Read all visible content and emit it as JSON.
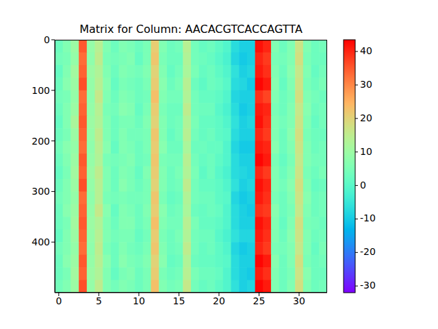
{
  "chart_data": {
    "type": "heatmap",
    "title": "Matrix for Column: AACACGTCACCAGTTA",
    "x": [
      0,
      1,
      2,
      3,
      4,
      5,
      6,
      7,
      8,
      9,
      10,
      11,
      12,
      13,
      14,
      15,
      16,
      17,
      18,
      19,
      20,
      21,
      22,
      23,
      24,
      25,
      26,
      27,
      28,
      29,
      30,
      31,
      32,
      33
    ],
    "row_edges": [
      0,
      25,
      50,
      75,
      100,
      125,
      150,
      175,
      200,
      225,
      250,
      275,
      300,
      325,
      350,
      375,
      400,
      425,
      450,
      475,
      500
    ],
    "xlim": [
      -0.5,
      33.5
    ],
    "xticks": [
      0,
      5,
      10,
      15,
      20,
      25,
      30
    ],
    "ylim": [
      500,
      0
    ],
    "yticks": [
      0,
      100,
      200,
      300,
      400
    ],
    "cells": [
      [
        3,
        6,
        10,
        35,
        9,
        14,
        6,
        3,
        6,
        5,
        3,
        5,
        21,
        6,
        3,
        4,
        14,
        4,
        2,
        3,
        1,
        -1,
        -7,
        -9,
        -9,
        42,
        40,
        6,
        3,
        6,
        17,
        6,
        3,
        4
      ],
      [
        4,
        5,
        9,
        33,
        8,
        15,
        5,
        4,
        5,
        6,
        2,
        5,
        22,
        5,
        3,
        3,
        13,
        4,
        3,
        2,
        0,
        -2,
        -8,
        -10,
        -9,
        40,
        38,
        5,
        4,
        6,
        18,
        5,
        3,
        3
      ],
      [
        2,
        6,
        11,
        34,
        10,
        13,
        6,
        3,
        6,
        5,
        4,
        6,
        20,
        6,
        2,
        4,
        12,
        5,
        2,
        3,
        1,
        -1,
        -6,
        -9,
        -8,
        41,
        39,
        6,
        3,
        7,
        16,
        6,
        2,
        4
      ],
      [
        3,
        7,
        10,
        36,
        9,
        14,
        7,
        2,
        5,
        4,
        3,
        5,
        21,
        7,
        3,
        5,
        14,
        3,
        1,
        3,
        2,
        0,
        -7,
        -8,
        -10,
        43,
        41,
        7,
        2,
        6,
        17,
        5,
        3,
        5
      ],
      [
        4,
        5,
        9,
        33,
        8,
        16,
        6,
        3,
        6,
        5,
        3,
        4,
        23,
        6,
        4,
        4,
        13,
        4,
        2,
        2,
        1,
        -1,
        -8,
        -9,
        -9,
        39,
        37,
        6,
        3,
        5,
        18,
        6,
        4,
        3
      ],
      [
        3,
        6,
        10,
        34,
        9,
        14,
        5,
        4,
        7,
        6,
        2,
        5,
        21,
        5,
        3,
        3,
        15,
        4,
        3,
        3,
        0,
        -2,
        -7,
        -10,
        -9,
        41,
        40,
        5,
        3,
        6,
        16,
        7,
        3,
        4
      ],
      [
        2,
        6,
        12,
        35,
        10,
        13,
        6,
        3,
        5,
        5,
        3,
        6,
        20,
        6,
        3,
        4,
        13,
        5,
        2,
        2,
        1,
        -1,
        -6,
        -9,
        -8,
        42,
        39,
        6,
        4,
        6,
        17,
        6,
        2,
        4
      ],
      [
        3,
        5,
        10,
        34,
        9,
        15,
        6,
        3,
        6,
        4,
        4,
        5,
        22,
        6,
        2,
        4,
        14,
        4,
        2,
        3,
        1,
        0,
        -7,
        -9,
        -9,
        40,
        38,
        6,
        3,
        7,
        18,
        5,
        3,
        3
      ],
      [
        4,
        7,
        9,
        33,
        8,
        14,
        7,
        2,
        6,
        5,
        3,
        5,
        21,
        7,
        3,
        3,
        12,
        3,
        3,
        2,
        2,
        -1,
        -8,
        -10,
        -10,
        41,
        40,
        7,
        3,
        6,
        17,
        6,
        3,
        4
      ],
      [
        3,
        6,
        10,
        35,
        9,
        13,
        5,
        4,
        5,
        6,
        3,
        4,
        22,
        5,
        4,
        4,
        14,
        4,
        2,
        3,
        1,
        -1,
        -7,
        -9,
        -9,
        43,
        41,
        5,
        2,
        5,
        16,
        6,
        4,
        4
      ],
      [
        2,
        5,
        11,
        34,
        10,
        15,
        6,
        3,
        6,
        5,
        2,
        6,
        21,
        6,
        3,
        5,
        13,
        5,
        1,
        3,
        0,
        -2,
        -7,
        -8,
        -9,
        40,
        38,
        6,
        3,
        6,
        17,
        5,
        3,
        5
      ],
      [
        3,
        6,
        10,
        36,
        9,
        14,
        6,
        3,
        7,
        5,
        3,
        5,
        20,
        6,
        3,
        4,
        15,
        4,
        2,
        2,
        1,
        -1,
        -6,
        -9,
        -8,
        42,
        40,
        6,
        4,
        7,
        18,
        6,
        2,
        3
      ],
      [
        4,
        6,
        9,
        33,
        8,
        14,
        5,
        4,
        5,
        4,
        4,
        5,
        22,
        5,
        2,
        3,
        13,
        4,
        3,
        3,
        1,
        0,
        -8,
        -10,
        -9,
        41,
        39,
        5,
        3,
        6,
        17,
        7,
        3,
        4
      ],
      [
        3,
        7,
        10,
        34,
        9,
        16,
        7,
        2,
        6,
        5,
        3,
        6,
        21,
        7,
        3,
        4,
        12,
        3,
        2,
        3,
        2,
        -1,
        -7,
        -9,
        -10,
        39,
        38,
        7,
        3,
        5,
        16,
        6,
        3,
        4
      ],
      [
        3,
        5,
        11,
        35,
        10,
        13,
        6,
        3,
        6,
        6,
        3,
        5,
        23,
        6,
        4,
        4,
        14,
        5,
        2,
        2,
        1,
        -1,
        -7,
        -9,
        -9,
        42,
        40,
        6,
        2,
        6,
        18,
        5,
        4,
        3
      ],
      [
        2,
        6,
        10,
        34,
        9,
        14,
        6,
        4,
        5,
        5,
        2,
        4,
        21,
        5,
        3,
        5,
        13,
        4,
        3,
        3,
        0,
        -2,
        -6,
        -8,
        -8,
        41,
        39,
        6,
        3,
        7,
        17,
        6,
        3,
        4
      ],
      [
        4,
        6,
        9,
        33,
        8,
        15,
        5,
        3,
        6,
        4,
        3,
        5,
        22,
        6,
        3,
        4,
        15,
        4,
        2,
        3,
        1,
        -1,
        -8,
        -10,
        -9,
        40,
        38,
        5,
        4,
        6,
        16,
        6,
        2,
        5
      ],
      [
        3,
        7,
        10,
        35,
        9,
        14,
        7,
        3,
        7,
        5,
        4,
        6,
        20,
        7,
        2,
        3,
        13,
        3,
        2,
        2,
        1,
        0,
        -7,
        -9,
        -9,
        43,
        41,
        7,
        3,
        6,
        18,
        5,
        3,
        4
      ],
      [
        3,
        5,
        11,
        34,
        10,
        13,
        6,
        2,
        5,
        6,
        3,
        5,
        21,
        5,
        3,
        4,
        14,
        5,
        3,
        3,
        2,
        -1,
        -7,
        -9,
        -10,
        41,
        39,
        6,
        3,
        5,
        17,
        7,
        3,
        3
      ],
      [
        4,
        6,
        10,
        36,
        9,
        15,
        6,
        4,
        6,
        5,
        3,
        5,
        23,
        6,
        4,
        5,
        16,
        4,
        2,
        3,
        1,
        -1,
        -6,
        -9,
        -8,
        43,
        41,
        6,
        3,
        6,
        18,
        6,
        3,
        4
      ]
    ],
    "colorbar": {
      "range": [
        -32,
        43.5
      ],
      "ticks": [
        -30,
        -20,
        -10,
        0,
        10,
        20,
        30,
        40
      ]
    }
  }
}
